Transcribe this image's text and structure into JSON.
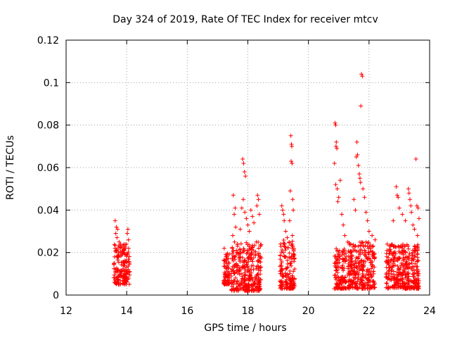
{
  "chart_data": {
    "type": "scatter",
    "title": "Day 324 of 2019, Rate Of TEC Index for receiver mtcv",
    "xlabel": "GPS time / hours",
    "ylabel": "ROTI / TECUs",
    "xlim": [
      12,
      24
    ],
    "ylim": [
      0,
      0.12
    ],
    "x_ticks": [
      12,
      14,
      16,
      18,
      20,
      22,
      24
    ],
    "x_tick_labels": [
      "12",
      "14",
      "16",
      "18",
      "20",
      "22",
      "24"
    ],
    "y_ticks": [
      0,
      0.02,
      0.04,
      0.06,
      0.08,
      0.1,
      0.12
    ],
    "y_tick_labels": [
      "0",
      "0.02",
      "0.04",
      "0.06",
      "0.08",
      "0.1",
      "0.12"
    ],
    "grid": true,
    "marker": "+",
    "marker_color": "#ff0000",
    "series": [
      {
        "name": "ROTI",
        "points": [
          [
            13.62,
            0.035
          ],
          [
            13.66,
            0.032
          ],
          [
            13.64,
            0.029
          ],
          [
            13.7,
            0.031
          ],
          [
            13.68,
            0.027
          ],
          [
            13.75,
            0.025
          ],
          [
            13.8,
            0.024
          ],
          [
            13.9,
            0.021
          ],
          [
            14.04,
            0.031
          ],
          [
            14.02,
            0.029
          ],
          [
            14.06,
            0.026
          ],
          [
            13.6,
            0.018
          ],
          [
            13.98,
            0.016
          ],
          [
            14.05,
            0.012
          ],
          [
            13.65,
            0.008
          ],
          [
            13.95,
            0.006
          ],
          [
            17.22,
            0.022
          ],
          [
            17.28,
            0.018
          ],
          [
            17.3,
            0.015
          ],
          [
            17.25,
            0.01
          ],
          [
            17.35,
            0.008
          ],
          [
            17.52,
            0.047
          ],
          [
            17.58,
            0.041
          ],
          [
            17.55,
            0.038
          ],
          [
            17.6,
            0.032
          ],
          [
            17.5,
            0.028
          ],
          [
            17.56,
            0.025
          ],
          [
            17.62,
            0.021
          ],
          [
            17.83,
            0.064
          ],
          [
            17.86,
            0.062
          ],
          [
            17.89,
            0.058
          ],
          [
            17.92,
            0.056
          ],
          [
            17.85,
            0.045
          ],
          [
            17.8,
            0.041
          ],
          [
            17.9,
            0.039
          ],
          [
            17.95,
            0.036
          ],
          [
            18.0,
            0.033
          ],
          [
            17.75,
            0.031
          ],
          [
            18.05,
            0.03
          ],
          [
            18.1,
            0.04
          ],
          [
            18.15,
            0.037
          ],
          [
            18.2,
            0.034
          ],
          [
            18.32,
            0.047
          ],
          [
            18.35,
            0.045
          ],
          [
            18.3,
            0.042
          ],
          [
            18.38,
            0.038
          ],
          [
            18.28,
            0.025
          ],
          [
            18.36,
            0.022
          ],
          [
            19.12,
            0.042
          ],
          [
            19.15,
            0.04
          ],
          [
            19.18,
            0.038
          ],
          [
            19.2,
            0.035
          ],
          [
            19.25,
            0.03
          ],
          [
            19.3,
            0.027
          ],
          [
            19.22,
            0.024
          ],
          [
            19.42,
            0.075
          ],
          [
            19.44,
            0.071
          ],
          [
            19.45,
            0.07
          ],
          [
            19.43,
            0.063
          ],
          [
            19.46,
            0.062
          ],
          [
            19.4,
            0.049
          ],
          [
            19.48,
            0.045
          ],
          [
            19.5,
            0.04
          ],
          [
            19.38,
            0.035
          ],
          [
            19.47,
            0.028
          ],
          [
            19.52,
            0.022
          ],
          [
            20.88,
            0.081
          ],
          [
            20.9,
            0.08
          ],
          [
            20.92,
            0.072
          ],
          [
            20.91,
            0.07
          ],
          [
            20.94,
            0.069
          ],
          [
            20.86,
            0.062
          ],
          [
            20.9,
            0.052
          ],
          [
            20.95,
            0.05
          ],
          [
            21.05,
            0.054
          ],
          [
            21.0,
            0.046
          ],
          [
            20.97,
            0.044
          ],
          [
            21.1,
            0.038
          ],
          [
            21.15,
            0.033
          ],
          [
            21.2,
            0.028
          ],
          [
            21.3,
            0.025
          ],
          [
            21.4,
            0.024
          ],
          [
            21.5,
            0.045
          ],
          [
            21.55,
            0.04
          ],
          [
            21.6,
            0.072
          ],
          [
            21.62,
            0.066
          ],
          [
            21.58,
            0.065
          ],
          [
            21.65,
            0.061
          ],
          [
            21.68,
            0.057
          ],
          [
            21.7,
            0.055
          ],
          [
            21.72,
            0.053
          ],
          [
            21.75,
            0.104
          ],
          [
            21.78,
            0.103
          ],
          [
            21.73,
            0.089
          ],
          [
            21.8,
            0.05
          ],
          [
            21.85,
            0.046
          ],
          [
            21.9,
            0.039
          ],
          [
            21.95,
            0.035
          ],
          [
            22.0,
            0.03
          ],
          [
            22.1,
            0.028
          ],
          [
            22.2,
            0.026
          ],
          [
            22.6,
            0.024
          ],
          [
            22.7,
            0.023
          ],
          [
            22.8,
            0.035
          ],
          [
            22.9,
            0.051
          ],
          [
            22.93,
            0.047
          ],
          [
            22.96,
            0.046
          ],
          [
            23.0,
            0.041
          ],
          [
            23.1,
            0.038
          ],
          [
            23.2,
            0.035
          ],
          [
            23.3,
            0.05
          ],
          [
            23.32,
            0.048
          ],
          [
            23.35,
            0.045
          ],
          [
            23.38,
            0.042
          ],
          [
            23.4,
            0.039
          ],
          [
            23.45,
            0.033
          ],
          [
            23.5,
            0.031
          ],
          [
            23.55,
            0.064
          ],
          [
            23.58,
            0.042
          ],
          [
            23.62,
            0.041
          ],
          [
            23.65,
            0.036
          ],
          [
            23.6,
            0.028
          ]
        ],
        "dense_clusters": [
          {
            "x": [
              13.57,
              14.1
            ],
            "y": [
              0.005,
              0.024
            ]
          },
          {
            "x": [
              17.2,
              17.4
            ],
            "y": [
              0.005,
              0.02
            ]
          },
          {
            "x": [
              17.45,
              18.45
            ],
            "y": [
              0.002,
              0.025
            ]
          },
          {
            "x": [
              19.05,
              19.55
            ],
            "y": [
              0.003,
              0.026
            ]
          },
          {
            "x": [
              20.85,
              21.25
            ],
            "y": [
              0.003,
              0.022
            ]
          },
          {
            "x": [
              21.3,
              22.2
            ],
            "y": [
              0.003,
              0.025
            ]
          },
          {
            "x": [
              22.55,
              23.65
            ],
            "y": [
              0.003,
              0.024
            ]
          }
        ]
      }
    ]
  }
}
